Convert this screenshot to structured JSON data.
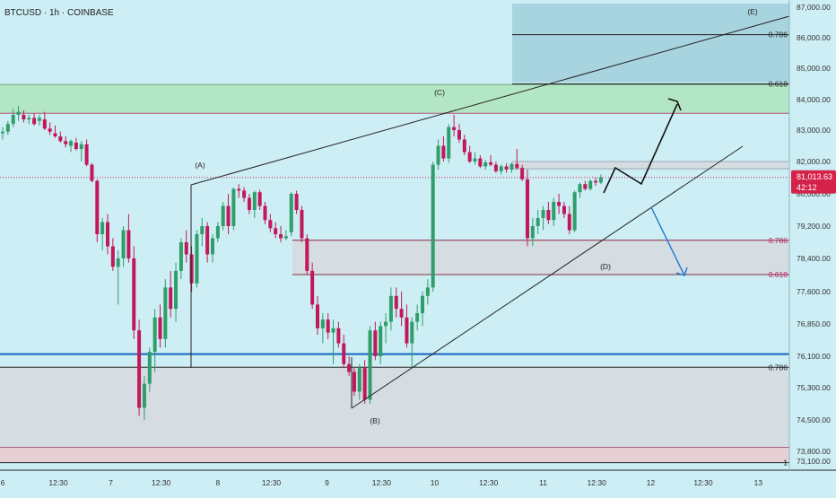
{
  "header": {
    "symbol_line": "BTCUSD · 1h · COINBASE"
  },
  "price_badge": {
    "price": "81,013.63",
    "countdown": "42:12",
    "color": "#d5224a"
  },
  "colors": {
    "background": "#cdeef4",
    "up_candle": "#2f9e6a",
    "down_candle": "#c2185b",
    "support_line": "#1565c0",
    "green_zone": "#b3e6c4",
    "grey_zone": "#d5dde2",
    "pink_zone": "#e6cfd5",
    "upper_box": "#a8d4df",
    "projection_down": "#1e77d2"
  },
  "chart_data": {
    "type": "candlestick",
    "title": "BTCUSD · 1h · COINBASE",
    "xlabel": "",
    "ylabel": "",
    "ylim": [
      72800,
      87200
    ],
    "y_axis_position": "right",
    "grid": false,
    "y_ticks": [
      "87,000.00",
      "86,000.00",
      "85,000.00",
      "84,000.00",
      "83,000.00",
      "82,000.00",
      "80,000.00",
      "79,200.00",
      "78,400.00",
      "77,600.00",
      "76,850.00",
      "76,100.00",
      "75,300.00",
      "74,500.00",
      "73,800.00",
      "73,100.00"
    ],
    "y_tick_values": [
      87000,
      86000,
      85000,
      84000,
      83000,
      82000,
      80000,
      79200,
      78400,
      77600,
      76850,
      76100,
      75300,
      74500,
      73800,
      73100
    ],
    "x_ticks": [
      "6",
      "12:30",
      "7",
      "12:30",
      "8",
      "12:30",
      "9",
      "12:30",
      "10",
      "12:30",
      "11",
      "12:30",
      "12",
      "12:30",
      "13"
    ],
    "x_tick_values": [
      0,
      10.6,
      20.6,
      30.2,
      41.0,
      51.2,
      61.8,
      72.2,
      82.3,
      92.6,
      103.0,
      113.2,
      123.5,
      133.5,
      144.0
    ],
    "last_price": 81013.63,
    "candles": [
      [
        0,
        82900,
        83100,
        82700,
        82950
      ],
      [
        1,
        82950,
        83300,
        82850,
        83200
      ],
      [
        2,
        83200,
        83700,
        83100,
        83500
      ],
      [
        3,
        83500,
        83800,
        83300,
        83600
      ],
      [
        4,
        83500,
        83650,
        83250,
        83350
      ],
      [
        5,
        83350,
        83500,
        83200,
        83400
      ],
      [
        6,
        83400,
        83550,
        83150,
        83200
      ],
      [
        7,
        83300,
        83500,
        83150,
        83400
      ],
      [
        8,
        83350,
        83600,
        83000,
        83050
      ],
      [
        9,
        83050,
        83250,
        82850,
        82950
      ],
      [
        10,
        82900,
        83150,
        82750,
        82800
      ],
      [
        11,
        82800,
        82950,
        82600,
        82650
      ],
      [
        12,
        82650,
        82800,
        82450,
        82550
      ],
      [
        13,
        82500,
        82700,
        82300,
        82650
      ],
      [
        14,
        82600,
        82750,
        82350,
        82400
      ],
      [
        15,
        82400,
        82650,
        82000,
        82550
      ],
      [
        16,
        82550,
        82700,
        81700,
        81800
      ],
      [
        17,
        81800,
        81900,
        80700,
        80800
      ],
      [
        18,
        80800,
        80900,
        78800,
        79000
      ],
      [
        19,
        79000,
        79400,
        78600,
        79300
      ],
      [
        20,
        79300,
        79500,
        78500,
        78700
      ],
      [
        21,
        78700,
        78900,
        78100,
        78200
      ],
      [
        22,
        78200,
        78600,
        77300,
        78400
      ],
      [
        23,
        78400,
        79200,
        78200,
        79100
      ],
      [
        24,
        79100,
        79500,
        78300,
        78400
      ],
      [
        25,
        78400,
        78700,
        76500,
        76700
      ],
      [
        26,
        76700,
        76950,
        74600,
        74800
      ],
      [
        27,
        74800,
        75600,
        74500,
        75400
      ],
      [
        28,
        75400,
        76300,
        75200,
        76200
      ],
      [
        29,
        76200,
        77200,
        75700,
        77000
      ],
      [
        30,
        77000,
        77300,
        76300,
        76500
      ],
      [
        31,
        76500,
        77900,
        76300,
        77700
      ],
      [
        32,
        77700,
        78100,
        77000,
        77200
      ],
      [
        33,
        77200,
        78300,
        76900,
        78100
      ],
      [
        34,
        78100,
        78900,
        77900,
        78800
      ],
      [
        35,
        78800,
        79100,
        78300,
        78500
      ],
      [
        36,
        78500,
        78700,
        77600,
        77800
      ],
      [
        37,
        77800,
        79100,
        77700,
        79000
      ],
      [
        38,
        79000,
        79400,
        78700,
        79200
      ],
      [
        39,
        79200,
        79300,
        78300,
        78500
      ],
      [
        40,
        78500,
        79000,
        78300,
        78900
      ],
      [
        41,
        78900,
        79300,
        78800,
        79200
      ],
      [
        42,
        79200,
        79800,
        79100,
        79700
      ],
      [
        43,
        79700,
        80000,
        79000,
        79200
      ],
      [
        44,
        79200,
        80400,
        79100,
        80300
      ],
      [
        45,
        80300,
        80600,
        79900,
        80200
      ],
      [
        46,
        80200,
        80400,
        79800,
        79900
      ],
      [
        47,
        79900,
        80000,
        79500,
        79600
      ],
      [
        48,
        79600,
        80200,
        79400,
        80100
      ],
      [
        49,
        80100,
        80250,
        79600,
        79700
      ],
      [
        50,
        79700,
        79800,
        79250,
        79350
      ],
      [
        51,
        79350,
        79500,
        79050,
        79150
      ],
      [
        52,
        79150,
        79300,
        78900,
        79000
      ],
      [
        53,
        79000,
        79200,
        78800,
        78900
      ],
      [
        54,
        78900,
        79100,
        78850,
        78950
      ],
      [
        55,
        79050,
        80100,
        78950,
        80000
      ],
      [
        56,
        80000,
        80200,
        79500,
        79600
      ],
      [
        57,
        79600,
        79700,
        78800,
        78900
      ],
      [
        58,
        78900,
        79000,
        78000,
        78100
      ],
      [
        59,
        78100,
        78300,
        77200,
        77300
      ],
      [
        60,
        77300,
        77500,
        76600,
        76750
      ],
      [
        61,
        76750,
        77100,
        76400,
        76950
      ],
      [
        62,
        76950,
        77100,
        76500,
        76650
      ],
      [
        63,
        76650,
        76950,
        75900,
        76750
      ],
      [
        64,
        76750,
        76900,
        76300,
        76400
      ],
      [
        65,
        76400,
        76600,
        75800,
        75900
      ],
      [
        66,
        75900,
        76100,
        75600,
        75700
      ],
      [
        67,
        75700,
        75800,
        75100,
        75200
      ],
      [
        68,
        75200,
        75900,
        75000,
        75800
      ],
      [
        69,
        75800,
        76000,
        74900,
        75000
      ],
      [
        70,
        75000,
        76800,
        74900,
        76700
      ],
      [
        71,
        76700,
        76900,
        76000,
        76100
      ],
      [
        72,
        76100,
        76900,
        75900,
        76800
      ],
      [
        73,
        76800,
        77100,
        76400,
        76900
      ],
      [
        74,
        76900,
        77700,
        76700,
        77500
      ],
      [
        75,
        77500,
        77700,
        77000,
        77200
      ],
      [
        76,
        77200,
        77600,
        76800,
        77000
      ],
      [
        77,
        77000,
        77300,
        76300,
        76400
      ],
      [
        78,
        76400,
        77000,
        75800,
        76900
      ],
      [
        79,
        76900,
        77300,
        76700,
        77100
      ],
      [
        80,
        77100,
        77600,
        76800,
        77500
      ],
      [
        81,
        77500,
        77900,
        77300,
        77700
      ],
      [
        82,
        77700,
        82000,
        77600,
        81800
      ],
      [
        83,
        81800,
        82700,
        81500,
        82500
      ],
      [
        84,
        82500,
        82800,
        82000,
        82100
      ],
      [
        85,
        82100,
        83200,
        81900,
        83100
      ],
      [
        86,
        83100,
        83500,
        82800,
        83000
      ],
      [
        87,
        83000,
        83200,
        82600,
        82700
      ],
      [
        88,
        82700,
        82850,
        82200,
        82300
      ],
      [
        89,
        82300,
        82500,
        81900,
        82000
      ],
      [
        90,
        82000,
        82300,
        81800,
        82100
      ],
      [
        91,
        82100,
        82200,
        81600,
        81700
      ],
      [
        92,
        81700,
        82050,
        81500,
        81950
      ],
      [
        93,
        81950,
        82200,
        81700,
        81800
      ],
      [
        94,
        81800,
        82000,
        81300,
        81400
      ],
      [
        95,
        81400,
        81800,
        81200,
        81700
      ],
      [
        96,
        81700,
        81900,
        81300,
        81500
      ],
      [
        97,
        81500,
        81950,
        81300,
        81850
      ],
      [
        98,
        81850,
        82400,
        81500,
        81600
      ],
      [
        99,
        81600,
        81800,
        80800,
        80900
      ],
      [
        100,
        80900,
        81500,
        78700,
        78900
      ],
      [
        101,
        78900,
        79400,
        78700,
        79200
      ],
      [
        102,
        79200,
        79600,
        79000,
        79400
      ],
      [
        103,
        79400,
        79700,
        79100,
        79600
      ],
      [
        104,
        79600,
        79800,
        79250,
        79350
      ],
      [
        105,
        79350,
        79900,
        79200,
        79800
      ],
      [
        106,
        79800,
        80000,
        79500,
        79700
      ],
      [
        107,
        79700,
        79800,
        79400,
        79500
      ],
      [
        108,
        79500,
        79700,
        79000,
        79100
      ],
      [
        109,
        79100,
        80200,
        79050,
        80100
      ],
      [
        110,
        80100,
        80700,
        79900,
        80600
      ],
      [
        111,
        80600,
        80800,
        80200,
        80300
      ],
      [
        112,
        80300,
        80900,
        80200,
        80800
      ],
      [
        113,
        80800,
        81000,
        80500,
        80700
      ],
      [
        114,
        80700,
        81200,
        80600,
        81013.63
      ]
    ],
    "shaded_zones": [
      {
        "label": "green supply zone",
        "from": 83550,
        "to": 84480,
        "color": "#b3e6c4"
      },
      {
        "label": "upper target box",
        "from": 84550,
        "to": 87200,
        "color": "#a8d4df"
      },
      {
        "label": "resistance band",
        "from": 81550,
        "to": 82000,
        "color": "#d5dde2"
      },
      {
        "label": "fib retracement band",
        "from": 78010,
        "to": 78860,
        "color": "#d5dde2"
      },
      {
        "label": "lower demand zone",
        "from": 73910,
        "to": 75830,
        "color": "#d5dde2"
      },
      {
        "label": "bottom zone",
        "from": 73050,
        "to": 73890,
        "color": "#e6cfd5"
      }
    ],
    "fib_levels": [
      {
        "label": "0.786",
        "price": 86100
      },
      {
        "label": "0.618",
        "price": 84500
      },
      {
        "label": "0.786",
        "price": 78850
      },
      {
        "label": "0.618",
        "price": 78010
      },
      {
        "label": "0.786",
        "price": 75820
      },
      {
        "label": "1",
        "price": 73050
      }
    ],
    "support_level": 76150,
    "wave_labels": [
      "(A)",
      "(B)",
      "(C)",
      "(D)",
      "(E)"
    ]
  }
}
